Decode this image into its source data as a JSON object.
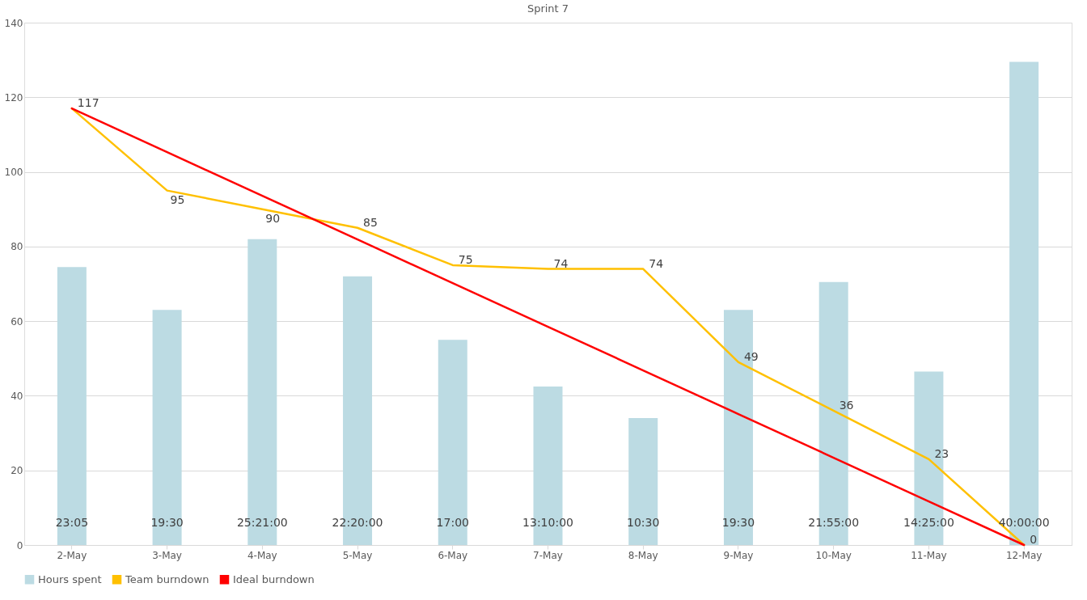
{
  "chart_data": {
    "type": "bar",
    "title": "Sprint 7",
    "categories": [
      "2-May",
      "3-May",
      "4-May",
      "5-May",
      "6-May",
      "7-May",
      "8-May",
      "9-May",
      "10-May",
      "11-May",
      "12-May"
    ],
    "series": [
      {
        "name": "Hours spent",
        "color": "#bcdbe3",
        "values": [
          74.5,
          63,
          82,
          72,
          55,
          42.5,
          34,
          63,
          70.5,
          46.5,
          129.5
        ]
      },
      {
        "name": "Team burndown",
        "type": "line",
        "color": "#ffc000",
        "values": [
          117,
          95,
          90,
          85,
          75,
          74,
          74,
          49,
          36,
          23,
          0
        ],
        "value_labels": [
          "117",
          "95",
          "90",
          "85",
          "75",
          "74",
          "74",
          "49",
          "36",
          "23",
          "0"
        ]
      },
      {
        "name": "Ideal burndown",
        "type": "line",
        "color": "#ff0000",
        "values": [
          117,
          105.3,
          93.6,
          81.9,
          70.2,
          58.5,
          46.8,
          35.1,
          23.4,
          11.7,
          0
        ]
      }
    ],
    "annotations": [
      {
        "text": "23:05",
        "x": "2-May",
        "y": 0
      },
      {
        "text": "19:30",
        "x": "3-May",
        "y": 0
      },
      {
        "text": "25:21:00",
        "x": "4-May",
        "y": 0
      },
      {
        "text": "22:20:00",
        "x": "5-May",
        "y": 0
      },
      {
        "text": "17:00",
        "x": "6-May",
        "y": 0
      },
      {
        "text": "13:10:00",
        "x": "7-May",
        "y": 0
      },
      {
        "text": "10:30",
        "x": "8-May",
        "y": 0
      },
      {
        "text": "19:30",
        "x": "9-May",
        "y": 0
      },
      {
        "text": "21:55:00",
        "x": "10-May",
        "y": 0
      },
      {
        "text": "14:25:00",
        "x": "11-May",
        "y": 0
      },
      {
        "text": "40:00:00",
        "x": "12-May",
        "y": 0
      }
    ],
    "ylim": [
      0,
      140
    ],
    "yticks": [
      0,
      20,
      40,
      60,
      80,
      100,
      120,
      140
    ],
    "grid": "y",
    "legend": "bottom",
    "marker": "none",
    "line_style": "solid"
  }
}
